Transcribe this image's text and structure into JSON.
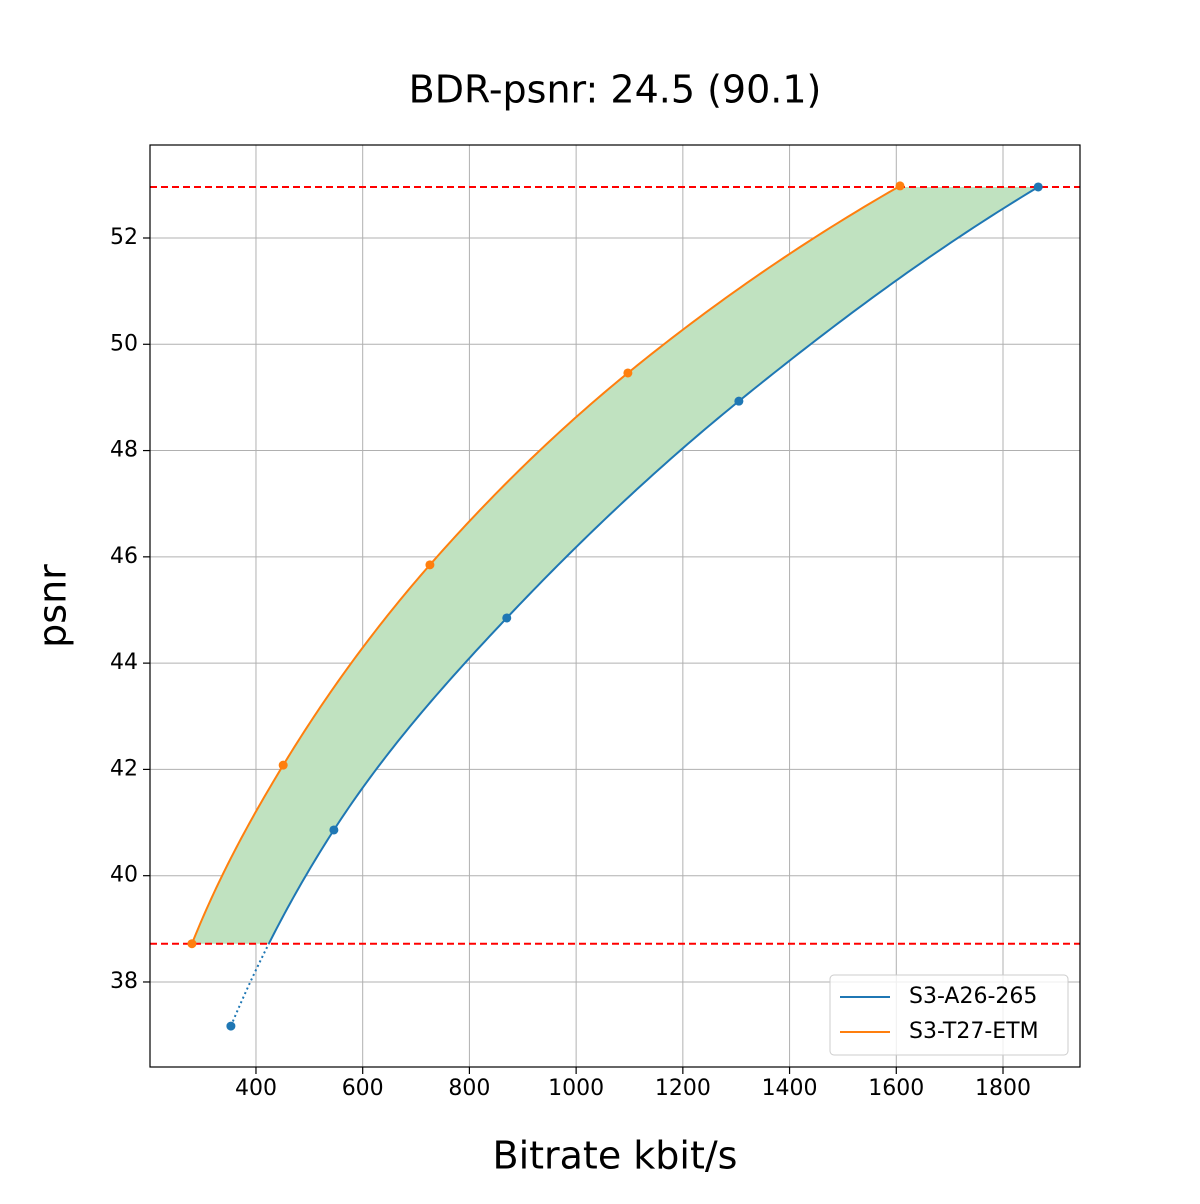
{
  "chart_data": {
    "type": "line",
    "title": "BDR-psnr: 24.5 (90.1)",
    "xlabel": "Bitrate kbit/s",
    "ylabel": "psnr",
    "series": [
      {
        "name": "S3-A26-265",
        "color": "#1f77b4",
        "x": [
          353,
          546,
          870,
          1305,
          1866
        ],
        "values": [
          37.17,
          40.86,
          44.85,
          48.93,
          52.96
        ]
      },
      {
        "name": "S3-T27-ETM",
        "color": "#ff7f0e",
        "x": [
          280,
          451,
          726,
          1097,
          1607
        ],
        "values": [
          38.72,
          42.08,
          45.85,
          49.46,
          52.98
        ]
      }
    ],
    "xlim": [
      201.4,
      1944.3
    ],
    "ylim": [
      36.4,
      53.75
    ],
    "xticks": [
      400,
      600,
      800,
      1000,
      1200,
      1400,
      1600,
      1800
    ],
    "yticks": [
      38,
      40,
      42,
      44,
      46,
      48,
      50,
      52
    ],
    "grid": true,
    "hlines": {
      "values": [
        38.72,
        52.96
      ],
      "color": "#ff0000"
    },
    "fill_color": "#c0e2c0",
    "legend": "lower right"
  }
}
